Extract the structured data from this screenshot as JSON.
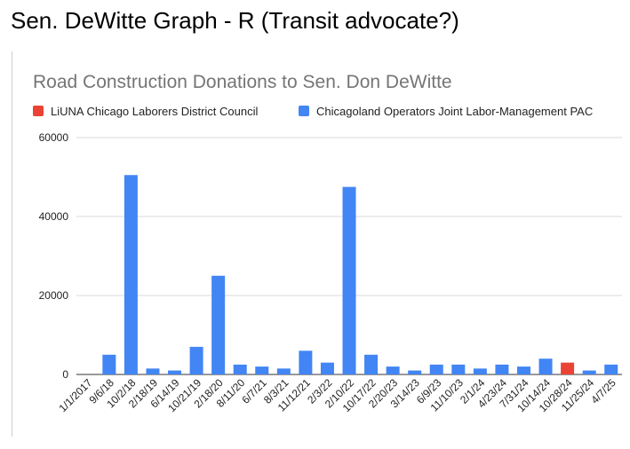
{
  "page": {
    "heading": "Sen. DeWitte Graph - R (Transit advocate?)"
  },
  "chart_data": {
    "type": "bar",
    "title": "Road Construction Donations to Sen. Don DeWitte",
    "xlabel": "",
    "ylabel": "",
    "ylim": [
      0,
      60000
    ],
    "yticks": [
      0,
      20000,
      40000,
      60000
    ],
    "grid": true,
    "legend_position": "top",
    "series": [
      {
        "name": "LiUNA Chicago Laborers District Council",
        "color": "#ea4335"
      },
      {
        "name": "Chicagoland Operators Joint Labor-Management PAC",
        "color": "#4285f4"
      }
    ],
    "categories": [
      "1/1/2017",
      "9/6/18",
      "10/2/18",
      "2/18/19",
      "6/14/19",
      "10/21/19",
      "2/18/20",
      "8/11/20",
      "6/7/21",
      "8/3/21",
      "11/12/21",
      "2/3/22",
      "2/10/22",
      "10/17/22",
      "2/20/23",
      "3/14/23",
      "6/9/23",
      "11/10/23",
      "2/1/24",
      "4/23/24",
      "7/31/24",
      "10/14/24",
      "10/28/24",
      "11/25/24",
      "4/7/25"
    ],
    "values": [
      0,
      5000,
      50500,
      1500,
      1000,
      7000,
      25000,
      2500,
      2000,
      1500,
      6000,
      3000,
      47500,
      5000,
      2000,
      1000,
      2500,
      2500,
      1500,
      2500,
      2000,
      4000,
      3000,
      1000,
      2500
    ],
    "bar_series": [
      1,
      1,
      1,
      1,
      1,
      1,
      1,
      1,
      1,
      1,
      1,
      1,
      1,
      1,
      1,
      1,
      1,
      1,
      1,
      1,
      1,
      1,
      0,
      1,
      1
    ]
  }
}
